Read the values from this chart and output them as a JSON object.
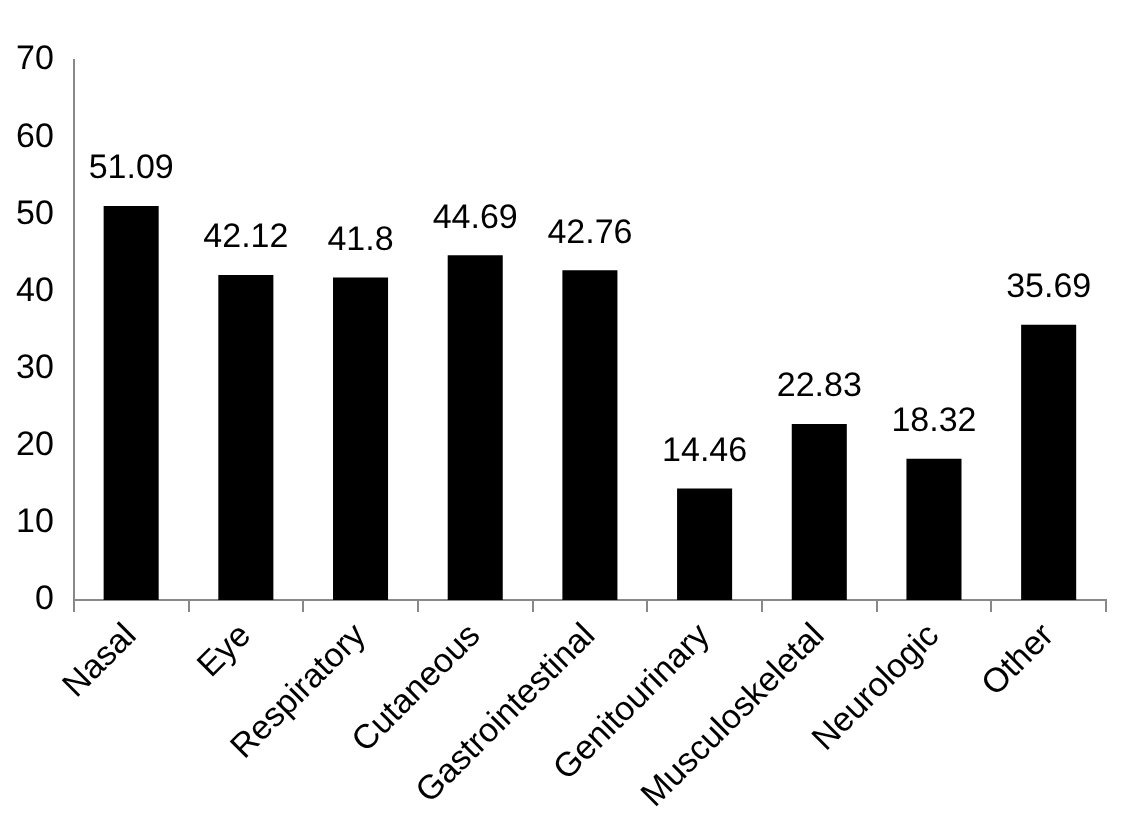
{
  "chart_data": {
    "type": "bar",
    "categories": [
      "Nasal",
      "Eye",
      "Respiratory",
      "Cutaneous",
      "Gastrointestinal",
      "Genitourinary",
      "Musculoskeletal",
      "Neurologic",
      "Other"
    ],
    "values": [
      51.09,
      42.12,
      41.8,
      44.69,
      42.76,
      14.46,
      22.83,
      18.32,
      35.69
    ],
    "color": "#000000",
    "ylim": [
      0,
      70
    ],
    "yticks": [
      0,
      10,
      20,
      30,
      40,
      50,
      60,
      70
    ],
    "data_labels": true,
    "grid": false,
    "legend": false
  }
}
